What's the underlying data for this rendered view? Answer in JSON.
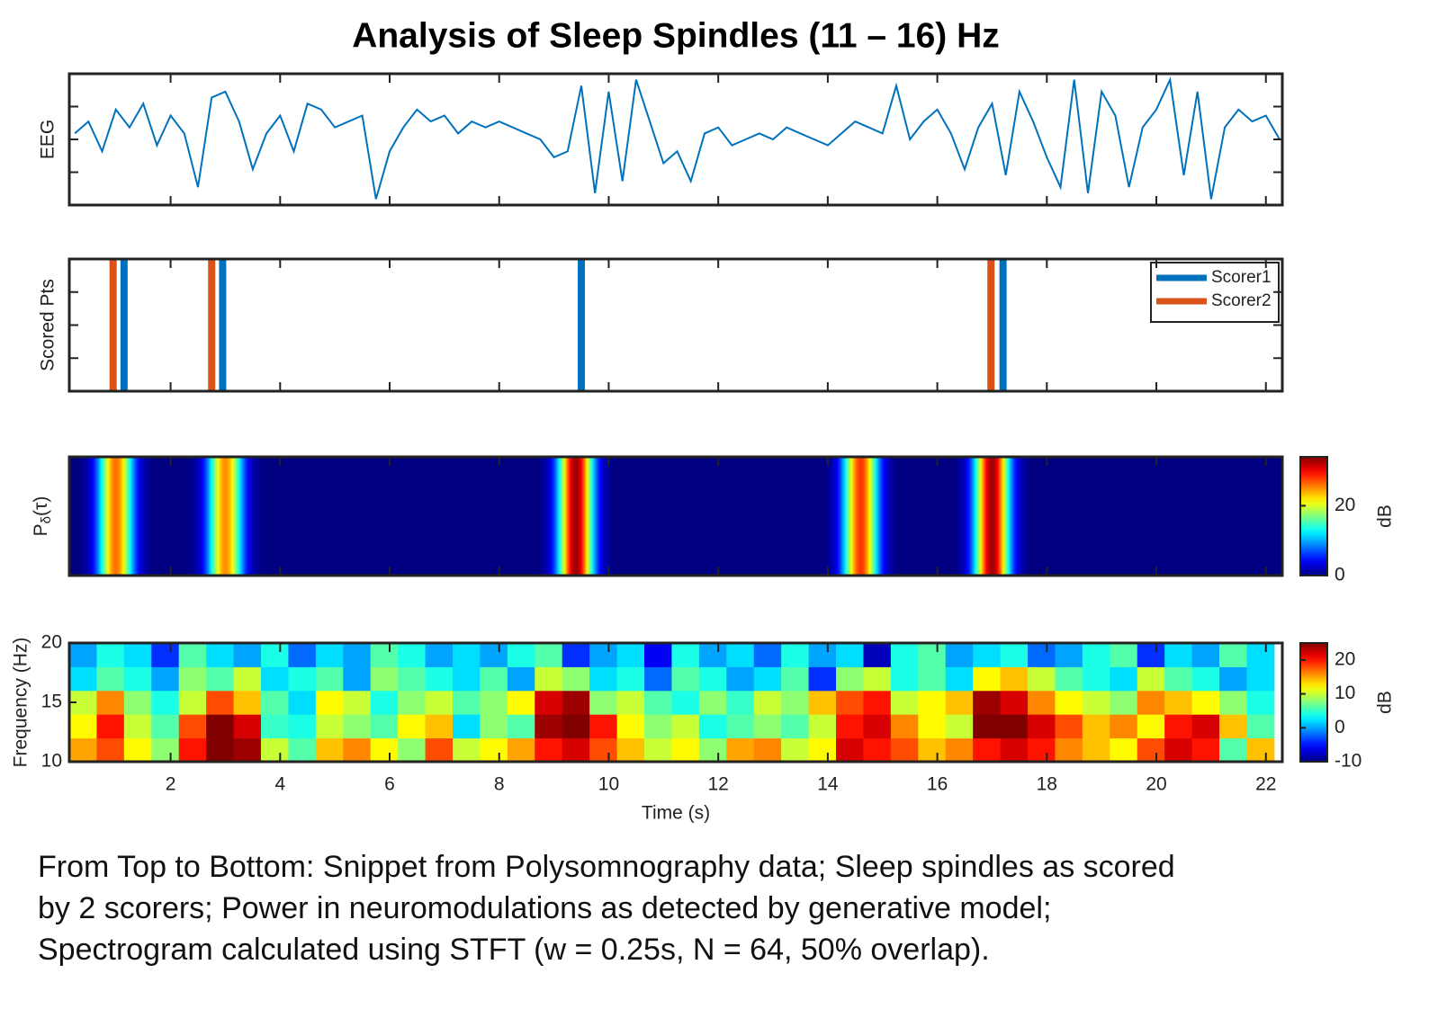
{
  "title": "Analysis of Sleep Spindles (11 – 16) Hz",
  "caption": [
    "From Top to Bottom: Snippet from Polysomnography data; Sleep spindles as scored",
    "by 2 scorers; Power in neuromodulations as detected by generative model;",
    "Spectrogram calculated using STFT (w = 0.25s, N = 64, 50% overlap)."
  ],
  "chart_data": [
    {
      "type": "line",
      "ylabel": "EEG",
      "color": "#0072bd",
      "ylim": [
        -1.1,
        1.1
      ],
      "x": [
        0.25,
        0.5,
        0.75,
        1,
        1.25,
        1.5,
        1.75,
        2,
        2.25,
        2.5,
        2.75,
        3,
        3.25,
        3.5,
        3.75,
        4,
        4.25,
        4.5,
        4.75,
        5,
        5.25,
        5.5,
        5.75,
        6,
        6.25,
        6.5,
        6.75,
        7,
        7.25,
        7.5,
        7.75,
        8,
        8.25,
        8.5,
        8.75,
        9,
        9.25,
        9.5,
        9.75,
        10,
        10.25,
        10.5,
        10.75,
        11,
        11.25,
        11.5,
        11.75,
        12,
        12.25,
        12.5,
        12.75,
        13,
        13.25,
        13.5,
        13.75,
        14,
        14.25,
        14.5,
        14.75,
        15,
        15.25,
        15.5,
        15.75,
        16,
        16.25,
        16.5,
        16.75,
        17,
        17.25,
        17.5,
        17.75,
        18,
        18.25,
        18.5,
        18.75,
        19,
        19.25,
        19.5,
        19.75,
        20,
        20.25,
        20.5,
        20.75,
        21,
        21.25,
        21.5,
        21.75,
        22,
        22.25
      ],
      "values": [
        0.1,
        0.3,
        -0.2,
        0.5,
        0.2,
        0.6,
        -0.1,
        0.4,
        0.1,
        -0.8,
        0.7,
        0.8,
        0.3,
        -0.5,
        0.1,
        0.4,
        -0.2,
        0.6,
        0.5,
        0.2,
        0.3,
        0.4,
        -1.0,
        -0.2,
        0.2,
        0.5,
        0.3,
        0.4,
        0.1,
        0.3,
        0.2,
        0.3,
        0.2,
        0.1,
        0.0,
        -0.3,
        -0.2,
        0.9,
        -0.9,
        0.8,
        -0.7,
        1.0,
        0.3,
        -0.4,
        -0.2,
        -0.7,
        0.1,
        0.2,
        -0.1,
        0.0,
        0.1,
        0.0,
        0.2,
        0.1,
        0.0,
        -0.1,
        0.1,
        0.3,
        0.2,
        0.1,
        0.9,
        0.0,
        0.3,
        0.5,
        0.1,
        -0.5,
        0.2,
        0.6,
        -0.6,
        0.8,
        0.3,
        -0.3,
        -0.8,
        1.0,
        -0.9,
        0.8,
        0.4,
        -0.8,
        0.2,
        0.5,
        1.0,
        -0.6,
        0.8,
        -1.0,
        0.2,
        0.5,
        0.3,
        0.4,
        0.0
      ]
    },
    {
      "type": "event",
      "ylabel": "Scored Pts",
      "legend": "northeast",
      "series": [
        {
          "name": "Scorer1",
          "color": "#0072bd",
          "values": [
            1.15,
            2.95,
            9.5,
            17.2
          ]
        },
        {
          "name": "Scorer2",
          "color": "#d95319",
          "values": [
            0.95,
            2.75,
            16.98
          ]
        }
      ]
    },
    {
      "type": "band",
      "ylabel": {
        "base": "P",
        "sub": "δ",
        "rest": "(τ)"
      },
      "centers": [
        1.0,
        3.0,
        9.4,
        14.6,
        17.0
      ],
      "values": [
        26,
        25,
        33,
        28,
        33
      ],
      "widths": [
        0.22,
        0.22,
        0.22,
        0.22,
        0.22
      ],
      "clim": [
        0,
        34
      ],
      "cticks": [
        0,
        20
      ],
      "clabel": "dB"
    },
    {
      "type": "heatmap",
      "ylabel": "Frequency (Hz)",
      "xlabel": "Time (s)",
      "xlim": [
        0.15,
        22.3
      ],
      "xticks": [
        2,
        4,
        6,
        8,
        10,
        12,
        14,
        16,
        18,
        20,
        22
      ],
      "ylim": [
        10,
        20
      ],
      "yticks": [
        10,
        15,
        20
      ],
      "time_bins": [
        0.15,
        0.65,
        1.15,
        1.65,
        2.15,
        2.65,
        3.15,
        3.65,
        4.15,
        4.65,
        5.15,
        5.65,
        6.15,
        6.65,
        7.15,
        7.65,
        8.15,
        8.65,
        9.15,
        9.65,
        10.15,
        10.65,
        11.15,
        11.65,
        12.15,
        12.65,
        13.15,
        13.65,
        14.15,
        14.65,
        15.15,
        15.65,
        16.15,
        16.65,
        17.15,
        17.65,
        18.15,
        18.65,
        19.15,
        19.65,
        20.15,
        20.65,
        21.15,
        21.65,
        22.15
      ],
      "freq_bins": [
        10,
        12,
        14,
        16,
        18,
        20
      ],
      "z": [
        [
          15,
          18,
          12,
          8,
          20,
          25,
          24,
          10,
          6,
          14,
          16,
          12,
          8,
          18,
          10,
          12,
          15,
          20,
          22,
          18,
          14,
          10,
          12,
          8,
          15,
          16,
          10,
          12,
          22,
          20,
          18,
          14,
          16,
          20,
          22,
          20,
          16,
          14,
          12,
          18,
          22,
          20,
          6,
          14
        ],
        [
          12,
          20,
          10,
          6,
          18,
          25,
          22,
          5,
          4,
          10,
          8,
          6,
          12,
          14,
          2,
          8,
          6,
          24,
          25,
          20,
          12,
          8,
          10,
          4,
          6,
          8,
          6,
          10,
          20,
          22,
          16,
          12,
          10,
          25,
          25,
          22,
          18,
          14,
          16,
          12,
          20,
          22,
          14,
          6
        ],
        [
          10,
          16,
          8,
          4,
          10,
          18,
          14,
          6,
          2,
          12,
          10,
          4,
          8,
          10,
          6,
          8,
          12,
          22,
          24,
          8,
          10,
          6,
          4,
          8,
          5,
          10,
          8,
          14,
          18,
          20,
          10,
          12,
          14,
          24,
          22,
          16,
          12,
          10,
          8,
          16,
          14,
          12,
          8,
          4
        ],
        [
          2,
          6,
          4,
          0,
          8,
          6,
          10,
          2,
          4,
          6,
          0,
          8,
          6,
          4,
          2,
          6,
          0,
          10,
          8,
          2,
          4,
          -2,
          6,
          4,
          0,
          2,
          6,
          -4,
          8,
          10,
          4,
          6,
          2,
          12,
          14,
          10,
          6,
          4,
          2,
          10,
          6,
          4,
          0,
          2
        ],
        [
          0,
          4,
          2,
          -4,
          6,
          2,
          0,
          4,
          -2,
          2,
          0,
          6,
          4,
          0,
          2,
          0,
          4,
          6,
          -4,
          0,
          2,
          -6,
          4,
          0,
          2,
          -2,
          4,
          0,
          2,
          -8,
          4,
          6,
          0,
          2,
          4,
          -2,
          0,
          4,
          6,
          -4,
          2,
          0,
          6,
          2
        ]
      ],
      "clim": [
        -10,
        25
      ],
      "cticks": [
        -10,
        0,
        10,
        20
      ],
      "clabel": "dB"
    }
  ]
}
